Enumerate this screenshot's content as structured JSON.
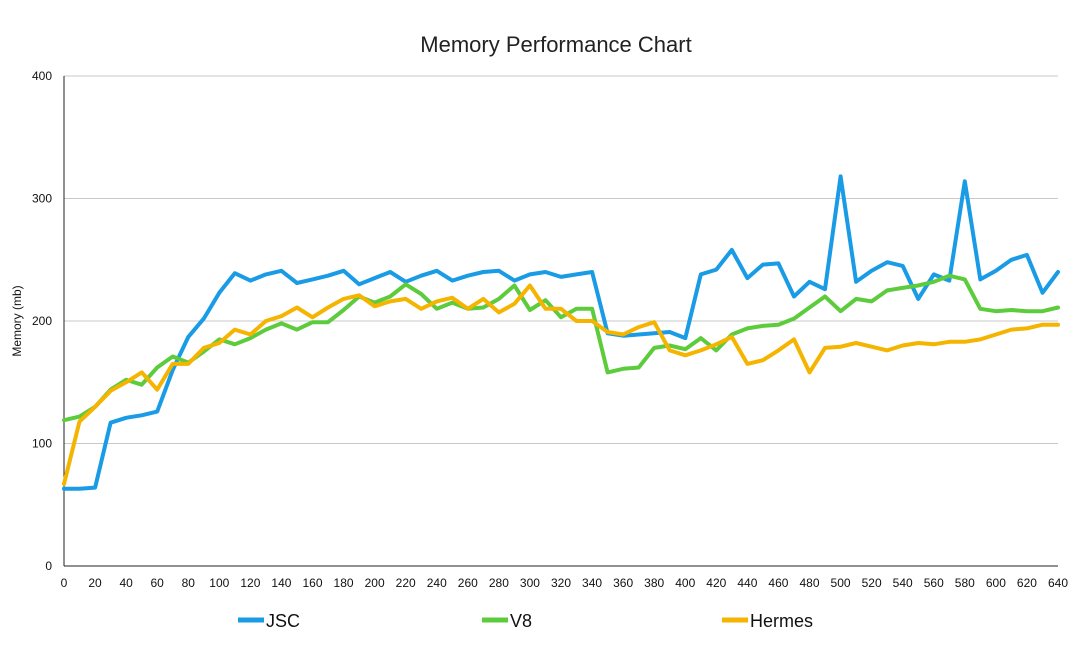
{
  "chart_data": {
    "type": "line",
    "title": "Memory Performance Chart",
    "xlabel": "",
    "ylabel": "Memory (mb)",
    "xlim": [
      0,
      640
    ],
    "ylim": [
      0,
      400
    ],
    "x_ticks": [
      0,
      20,
      40,
      60,
      80,
      100,
      120,
      140,
      160,
      180,
      200,
      220,
      240,
      260,
      280,
      300,
      320,
      340,
      360,
      380,
      400,
      420,
      440,
      460,
      480,
      500,
      520,
      540,
      560,
      580,
      600,
      620,
      640
    ],
    "y_ticks": [
      0,
      100,
      200,
      300,
      400
    ],
    "grid": "horizontal",
    "legend_position": "bottom",
    "x": [
      0,
      10,
      20,
      30,
      40,
      50,
      60,
      70,
      80,
      90,
      100,
      110,
      120,
      130,
      140,
      150,
      160,
      170,
      180,
      190,
      200,
      210,
      220,
      230,
      240,
      250,
      260,
      270,
      280,
      290,
      300,
      310,
      320,
      330,
      340,
      350,
      360,
      370,
      380,
      390,
      400,
      410,
      420,
      430,
      440,
      450,
      460,
      470,
      480,
      490,
      500,
      510,
      520,
      530,
      540,
      550,
      560,
      570,
      580,
      590,
      600,
      610,
      620,
      630,
      640
    ],
    "series": [
      {
        "name": "JSC",
        "color": "#1a9be6",
        "values": [
          63,
          63,
          64,
          117,
          121,
          123,
          126,
          160,
          187,
          202,
          223,
          239,
          233,
          238,
          241,
          231,
          234,
          237,
          241,
          230,
          235,
          240,
          232,
          237,
          241,
          233,
          237,
          240,
          241,
          233,
          238,
          240,
          236,
          238,
          240,
          190,
          188,
          189,
          190,
          191,
          186,
          238,
          242,
          258,
          235,
          246,
          247,
          220,
          232,
          226,
          318,
          232,
          241,
          248,
          245,
          218,
          238,
          233,
          314,
          234,
          241,
          250,
          254,
          223,
          240
        ]
      },
      {
        "name": "V8",
        "color": "#5dcc3c",
        "values": [
          119,
          122,
          130,
          144,
          152,
          148,
          162,
          171,
          166,
          175,
          185,
          181,
          186,
          193,
          198,
          193,
          199,
          199,
          209,
          220,
          215,
          220,
          230,
          222,
          210,
          215,
          210,
          211,
          218,
          229,
          209,
          217,
          203,
          210,
          210,
          158,
          161,
          162,
          178,
          180,
          177,
          186,
          176,
          189,
          194,
          196,
          197,
          202,
          211,
          220,
          208,
          218,
          216,
          225,
          227,
          229,
          232,
          237,
          234,
          210,
          208,
          209,
          208,
          208,
          211
        ]
      },
      {
        "name": "Hermes",
        "color": "#f5b400",
        "values": [
          67,
          118,
          130,
          143,
          150,
          158,
          144,
          165,
          165,
          178,
          182,
          193,
          189,
          200,
          204,
          211,
          203,
          211,
          218,
          221,
          212,
          216,
          218,
          210,
          216,
          219,
          210,
          218,
          207,
          214,
          229,
          210,
          210,
          200,
          200,
          191,
          189,
          195,
          199,
          176,
          172,
          176,
          181,
          187,
          165,
          168,
          176,
          185,
          158,
          178,
          179,
          182,
          179,
          176,
          180,
          182,
          181,
          183,
          183,
          185,
          189,
          193,
          194,
          197,
          197
        ]
      }
    ]
  }
}
